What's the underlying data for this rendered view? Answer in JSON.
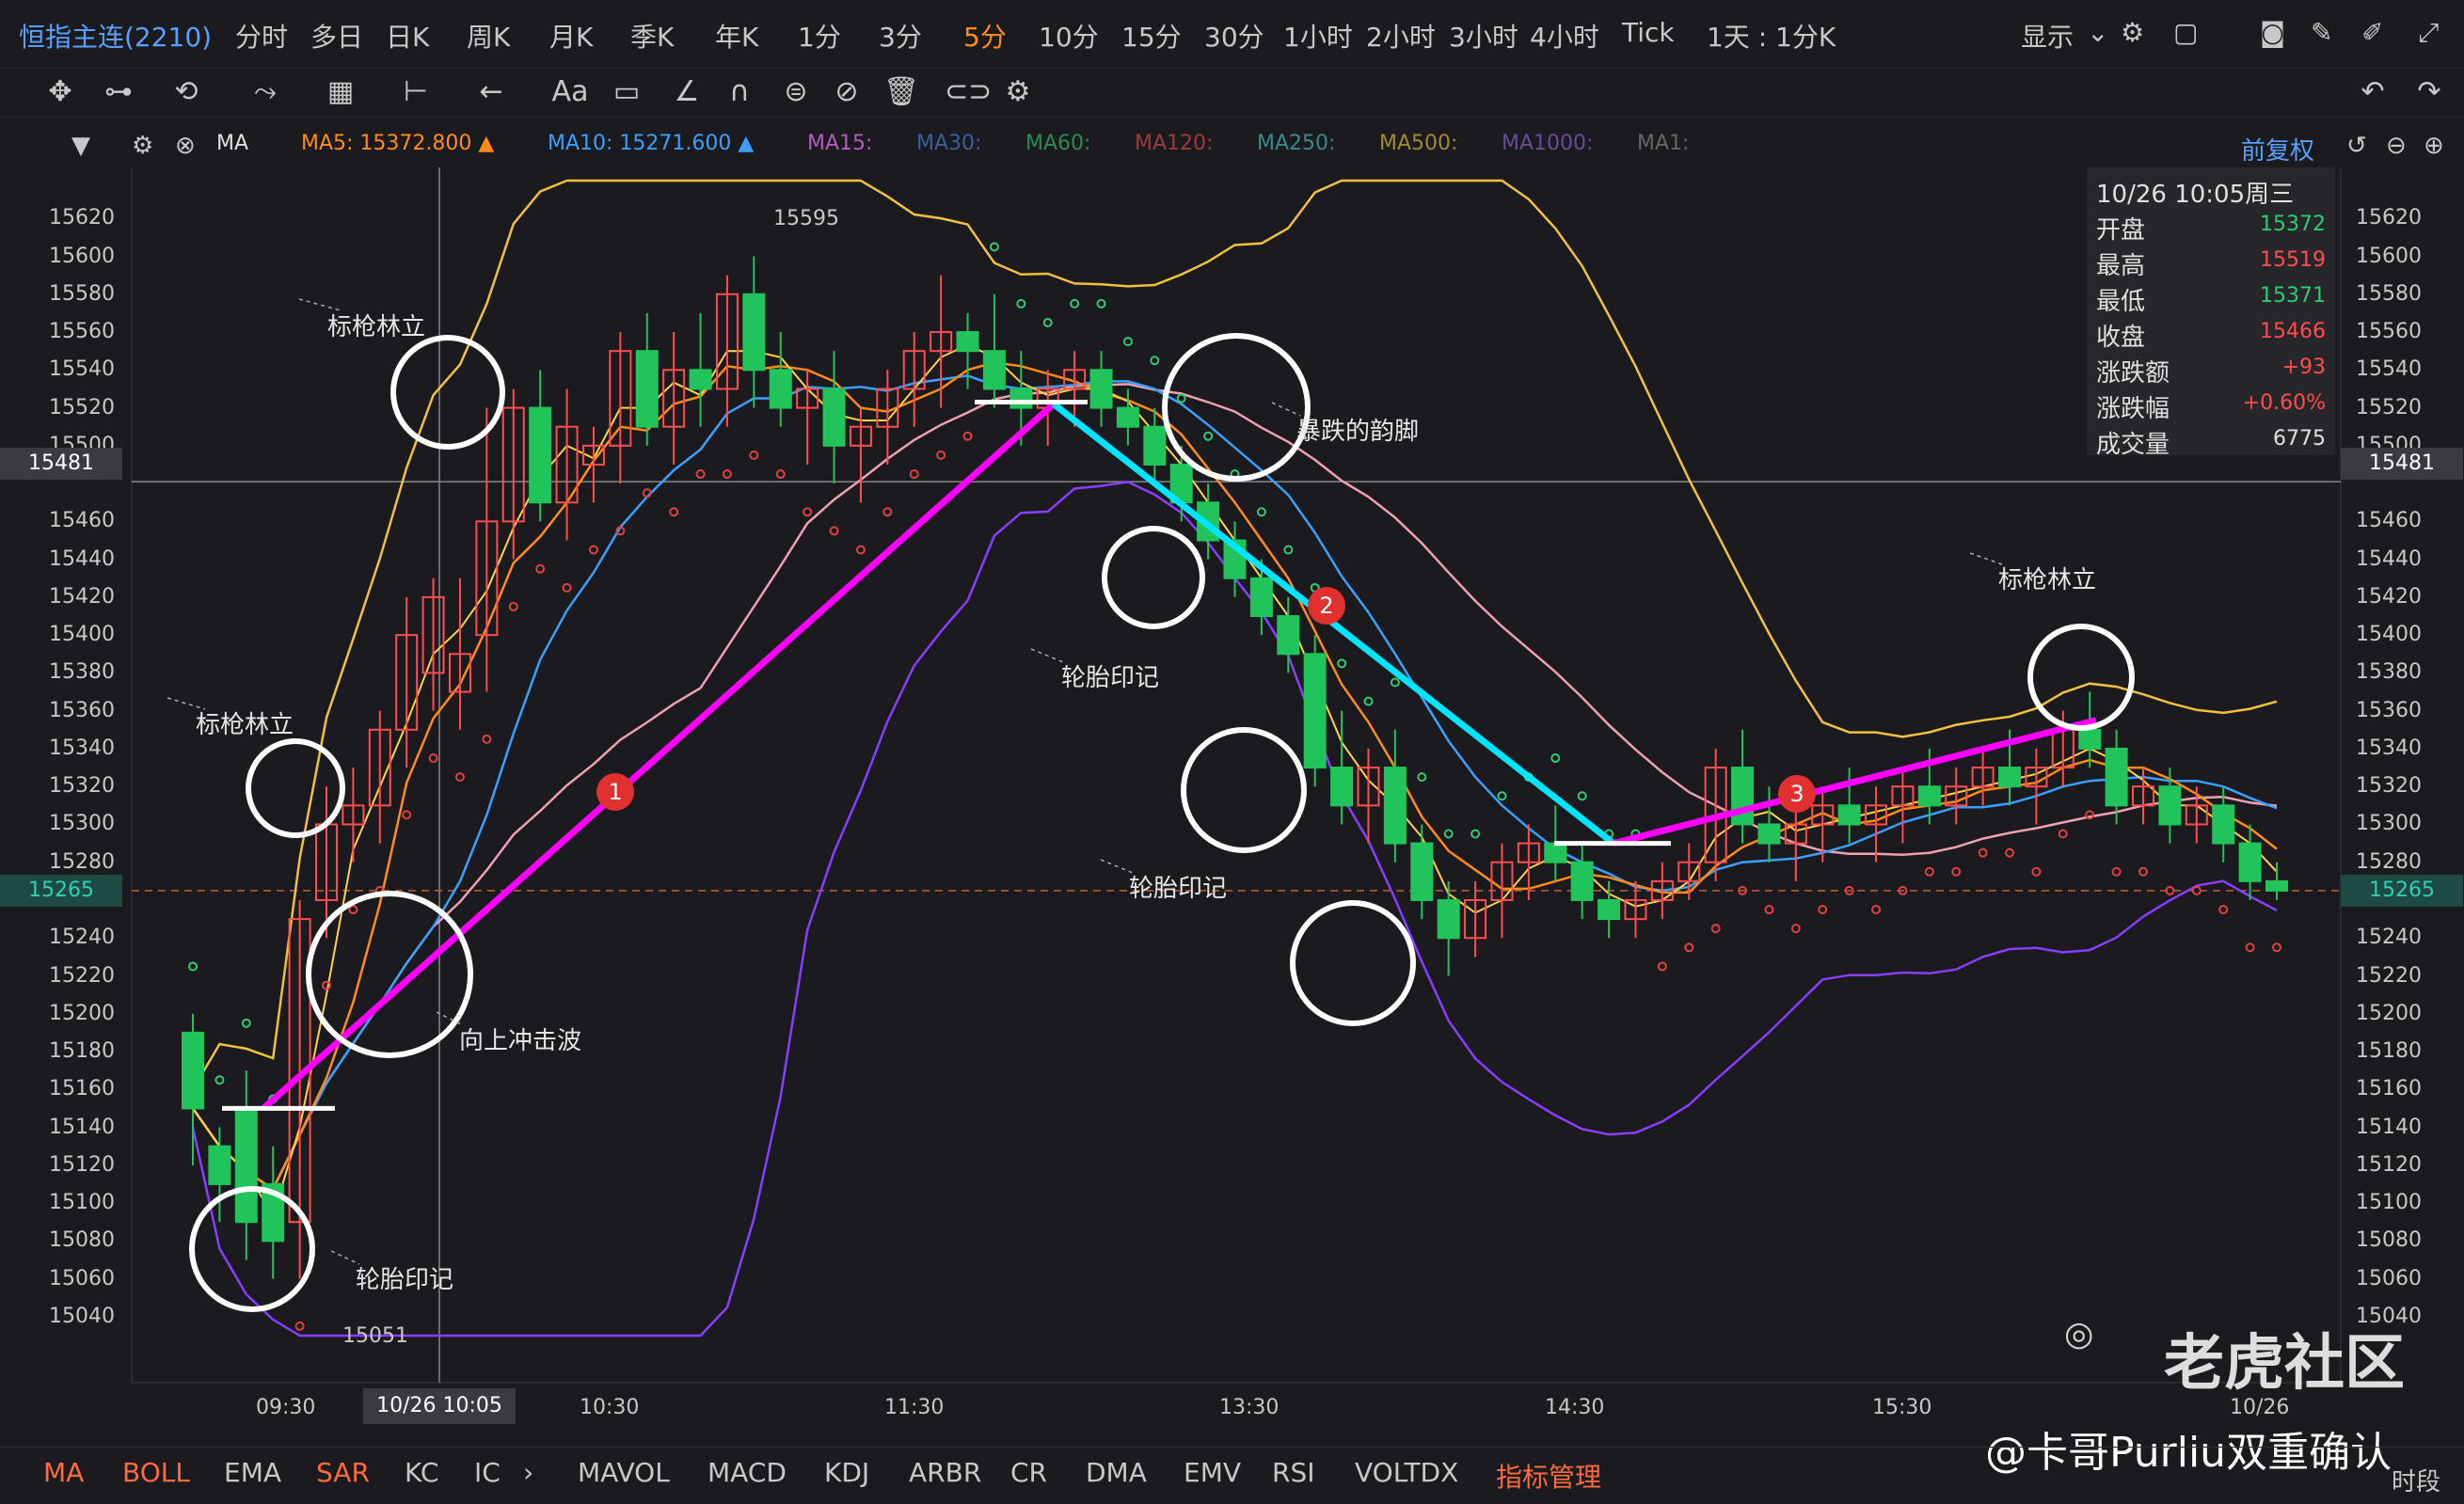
{
  "header": {
    "contract": "恒指主连(2210)",
    "timeframes": [
      "分时",
      "多日",
      "日K",
      "周K",
      "月K",
      "季K",
      "年K",
      "1分",
      "3分",
      "5分",
      "10分",
      "15分",
      "30分",
      "1小时",
      "2小时",
      "3小时",
      "4小时",
      "Tick"
    ],
    "active_timeframe": "5分",
    "multi_period": "1天 : 1分K",
    "display": "显示"
  },
  "toolbar": {
    "text_tool": "Aa"
  },
  "ma_row": {
    "indicator": "MA",
    "items": [
      {
        "label": "MA5:",
        "value": "15372.800",
        "arrow": "▲",
        "color": "#ff8c1a"
      },
      {
        "label": "MA10:",
        "value": "15271.600",
        "arrow": "▲",
        "color": "#3aa0ff"
      },
      {
        "label": "MA15:",
        "value": "",
        "color": "#b35cc0"
      },
      {
        "label": "MA30:",
        "value": "",
        "color": "#3a5fa0"
      },
      {
        "label": "MA60:",
        "value": "",
        "color": "#2e8a4e"
      },
      {
        "label": "MA120:",
        "value": "",
        "color": "#a03a3a"
      },
      {
        "label": "MA250:",
        "value": "",
        "color": "#3a8a8a"
      },
      {
        "label": "MA500:",
        "value": "",
        "color": "#a08a2e"
      },
      {
        "label": "MA1000:",
        "value": "",
        "color": "#6a4aa0"
      },
      {
        "label": "MA1:",
        "value": "",
        "color": "#666666"
      }
    ],
    "adjust": "前复权"
  },
  "price_axis": [
    "15620",
    "15600",
    "15580",
    "15560",
    "15540",
    "15520",
    "15500",
    "15460",
    "15440",
    "15420",
    "15400",
    "15380",
    "15360",
    "15340",
    "15320",
    "15300",
    "15280",
    "15240",
    "15220",
    "15200",
    "15180",
    "15160",
    "15140",
    "15120",
    "15100",
    "15080",
    "15060",
    "15040"
  ],
  "crosshair_price": "15481",
  "last_price": "15265",
  "time_axis": [
    "09:30",
    "10:30",
    "11:30",
    "13:30",
    "14:30",
    "15:30",
    "10/26"
  ],
  "crosshair_time": "10/26 10:05",
  "info_panel": {
    "datetime": "10/26 10:05周三",
    "rows": [
      {
        "label": "开盘",
        "value": "15372",
        "color": "#2ecc71"
      },
      {
        "label": "最高",
        "value": "15519",
        "color": "#ff4d4d"
      },
      {
        "label": "最低",
        "value": "15371",
        "color": "#2ecc71"
      },
      {
        "label": "收盘",
        "value": "15466",
        "color": "#ff4d4d"
      },
      {
        "label": "涨跌额",
        "value": "+93",
        "color": "#ff4d4d"
      },
      {
        "label": "涨跌幅",
        "value": "+0.60%",
        "color": "#ff4d4d"
      },
      {
        "label": "成交量",
        "value": "6775",
        "color": "#e0e0e0"
      }
    ]
  },
  "annotations": {
    "high_mark": "15595",
    "low_mark": "15051",
    "labels": [
      "标枪林立",
      "标枪林立",
      "标枪林立",
      "向上冲击波",
      "轮胎印记",
      "轮胎印记",
      "轮胎印记",
      "暴跌的韵脚"
    ],
    "segments": [
      "1",
      "2",
      "3"
    ]
  },
  "indicators": {
    "items": [
      "MA",
      "BOLL",
      "EMA",
      "SAR",
      "KC",
      "IC",
      "MAVOL",
      "MACD",
      "KDJ",
      "ARBR",
      "CR",
      "DMA",
      "EMV",
      "RSI",
      "VOLTDX"
    ],
    "active": [
      "MA",
      "BOLL",
      "SAR"
    ],
    "manage": "指标管理",
    "period_toggle": "时段"
  },
  "watermark": {
    "brand": "老虎社区",
    "author": "@卡哥Purliu双重确认"
  },
  "chart_data": {
    "type": "candlestick",
    "ylim": [
      15030,
      15640
    ],
    "candles": [
      [
        15190,
        15200,
        15120,
        15150
      ],
      [
        15130,
        15140,
        15090,
        15110
      ],
      [
        15150,
        15170,
        15070,
        15090
      ],
      [
        15110,
        15130,
        15060,
        15080
      ],
      [
        15090,
        15260,
        15060,
        15250
      ],
      [
        15260,
        15320,
        15240,
        15300
      ],
      [
        15300,
        15330,
        15280,
        15310
      ],
      [
        15310,
        15360,
        15290,
        15350
      ],
      [
        15350,
        15420,
        15330,
        15400
      ],
      [
        15380,
        15430,
        15360,
        15420
      ],
      [
        15370,
        15430,
        15350,
        15390
      ],
      [
        15400,
        15520,
        15370,
        15460
      ],
      [
        15460,
        15530,
        15440,
        15520
      ],
      [
        15520,
        15540,
        15460,
        15470
      ],
      [
        15470,
        15530,
        15450,
        15510
      ],
      [
        15490,
        15510,
        15470,
        15500
      ],
      [
        15500,
        15560,
        15480,
        15550
      ],
      [
        15550,
        15570,
        15500,
        15510
      ],
      [
        15510,
        15560,
        15490,
        15540
      ],
      [
        15540,
        15570,
        15510,
        15530
      ],
      [
        15530,
        15590,
        15510,
        15580
      ],
      [
        15580,
        15600,
        15520,
        15540
      ],
      [
        15540,
        15560,
        15510,
        15520
      ],
      [
        15520,
        15540,
        15490,
        15530
      ],
      [
        15530,
        15550,
        15480,
        15500
      ],
      [
        15500,
        15520,
        15470,
        15510
      ],
      [
        15510,
        15540,
        15490,
        15530
      ],
      [
        15530,
        15560,
        15510,
        15550
      ],
      [
        15550,
        15590,
        15520,
        15560
      ],
      [
        15560,
        15570,
        15530,
        15550
      ],
      [
        15550,
        15580,
        15520,
        15530
      ],
      [
        15530,
        15550,
        15500,
        15520
      ],
      [
        15520,
        15540,
        15500,
        15530
      ],
      [
        15530,
        15550,
        15510,
        15540
      ],
      [
        15540,
        15550,
        15510,
        15520
      ],
      [
        15520,
        15530,
        15500,
        15510
      ],
      [
        15510,
        15520,
        15480,
        15490
      ],
      [
        15490,
        15500,
        15460,
        15470
      ],
      [
        15470,
        15480,
        15440,
        15450
      ],
      [
        15450,
        15460,
        15420,
        15430
      ],
      [
        15430,
        15440,
        15400,
        15410
      ],
      [
        15410,
        15420,
        15380,
        15390
      ],
      [
        15390,
        15400,
        15320,
        15330
      ],
      [
        15330,
        15360,
        15300,
        15310
      ],
      [
        15310,
        15340,
        15290,
        15330
      ],
      [
        15330,
        15350,
        15280,
        15290
      ],
      [
        15290,
        15300,
        15250,
        15260
      ],
      [
        15260,
        15270,
        15220,
        15240
      ],
      [
        15240,
        15270,
        15230,
        15260
      ],
      [
        15260,
        15290,
        15240,
        15280
      ],
      [
        15280,
        15300,
        15260,
        15290
      ],
      [
        15290,
        15310,
        15270,
        15280
      ],
      [
        15280,
        15290,
        15250,
        15260
      ],
      [
        15260,
        15270,
        15240,
        15250
      ],
      [
        15250,
        15270,
        15240,
        15260
      ],
      [
        15260,
        15280,
        15250,
        15270
      ],
      [
        15270,
        15290,
        15260,
        15280
      ],
      [
        15280,
        15340,
        15270,
        15330
      ],
      [
        15330,
        15350,
        15290,
        15300
      ],
      [
        15300,
        15320,
        15280,
        15290
      ],
      [
        15290,
        15310,
        15270,
        15300
      ],
      [
        15300,
        15320,
        15280,
        15310
      ],
      [
        15310,
        15330,
        15290,
        15300
      ],
      [
        15300,
        15320,
        15280,
        15310
      ],
      [
        15310,
        15330,
        15290,
        15320
      ],
      [
        15320,
        15340,
        15300,
        15310
      ],
      [
        15310,
        15330,
        15300,
        15320
      ],
      [
        15320,
        15340,
        15310,
        15330
      ],
      [
        15330,
        15350,
        15310,
        15320
      ],
      [
        15320,
        15340,
        15300,
        15330
      ],
      [
        15330,
        15360,
        15320,
        15350
      ],
      [
        15350,
        15370,
        15330,
        15340
      ],
      [
        15340,
        15350,
        15300,
        15310
      ],
      [
        15310,
        15330,
        15300,
        15320
      ],
      [
        15320,
        15330,
        15290,
        15300
      ],
      [
        15300,
        15320,
        15290,
        15310
      ],
      [
        15310,
        15320,
        15280,
        15290
      ],
      [
        15290,
        15300,
        15260,
        15270
      ],
      [
        15270,
        15280,
        15260,
        15265
      ]
    ]
  }
}
